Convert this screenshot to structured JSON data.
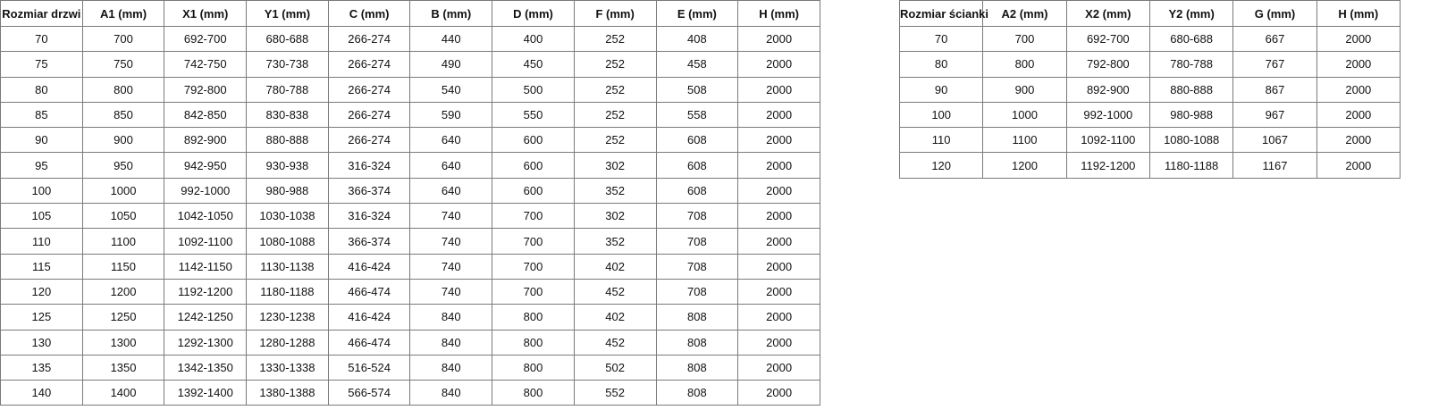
{
  "doors_table": {
    "headers": [
      "Rozmiar drzwi",
      "A1 (mm)",
      "X1 (mm)",
      "Y1 (mm)",
      "C (mm)",
      "B (mm)",
      "D (mm)",
      "F (mm)",
      "E (mm)",
      "H (mm)"
    ],
    "rows": [
      [
        "70",
        "700",
        "692-700",
        "680-688",
        "266-274",
        "440",
        "400",
        "252",
        "408",
        "2000"
      ],
      [
        "75",
        "750",
        "742-750",
        "730-738",
        "266-274",
        "490",
        "450",
        "252",
        "458",
        "2000"
      ],
      [
        "80",
        "800",
        "792-800",
        "780-788",
        "266-274",
        "540",
        "500",
        "252",
        "508",
        "2000"
      ],
      [
        "85",
        "850",
        "842-850",
        "830-838",
        "266-274",
        "590",
        "550",
        "252",
        "558",
        "2000"
      ],
      [
        "90",
        "900",
        "892-900",
        "880-888",
        "266-274",
        "640",
        "600",
        "252",
        "608",
        "2000"
      ],
      [
        "95",
        "950",
        "942-950",
        "930-938",
        "316-324",
        "640",
        "600",
        "302",
        "608",
        "2000"
      ],
      [
        "100",
        "1000",
        "992-1000",
        "980-988",
        "366-374",
        "640",
        "600",
        "352",
        "608",
        "2000"
      ],
      [
        "105",
        "1050",
        "1042-1050",
        "1030-1038",
        "316-324",
        "740",
        "700",
        "302",
        "708",
        "2000"
      ],
      [
        "110",
        "1100",
        "1092-1100",
        "1080-1088",
        "366-374",
        "740",
        "700",
        "352",
        "708",
        "2000"
      ],
      [
        "115",
        "1150",
        "1142-1150",
        "1130-1138",
        "416-424",
        "740",
        "700",
        "402",
        "708",
        "2000"
      ],
      [
        "120",
        "1200",
        "1192-1200",
        "1180-1188",
        "466-474",
        "740",
        "700",
        "452",
        "708",
        "2000"
      ],
      [
        "125",
        "1250",
        "1242-1250",
        "1230-1238",
        "416-424",
        "840",
        "800",
        "402",
        "808",
        "2000"
      ],
      [
        "130",
        "1300",
        "1292-1300",
        "1280-1288",
        "466-474",
        "840",
        "800",
        "452",
        "808",
        "2000"
      ],
      [
        "135",
        "1350",
        "1342-1350",
        "1330-1338",
        "516-524",
        "840",
        "800",
        "502",
        "808",
        "2000"
      ],
      [
        "140",
        "1400",
        "1392-1400",
        "1380-1388",
        "566-574",
        "840",
        "800",
        "552",
        "808",
        "2000"
      ]
    ]
  },
  "walls_table": {
    "headers": [
      "Rozmiar ścianki",
      "A2 (mm)",
      "X2 (mm)",
      "Y2 (mm)",
      "G (mm)",
      "H (mm)"
    ],
    "rows": [
      [
        "70",
        "700",
        "692-700",
        "680-688",
        "667",
        "2000"
      ],
      [
        "80",
        "800",
        "792-800",
        "780-788",
        "767",
        "2000"
      ],
      [
        "90",
        "900",
        "892-900",
        "880-888",
        "867",
        "2000"
      ],
      [
        "100",
        "1000",
        "992-1000",
        "980-988",
        "967",
        "2000"
      ],
      [
        "110",
        "1100",
        "1092-1100",
        "1080-1088",
        "1067",
        "2000"
      ],
      [
        "120",
        "1200",
        "1192-1200",
        "1180-1188",
        "1167",
        "2000"
      ]
    ]
  }
}
